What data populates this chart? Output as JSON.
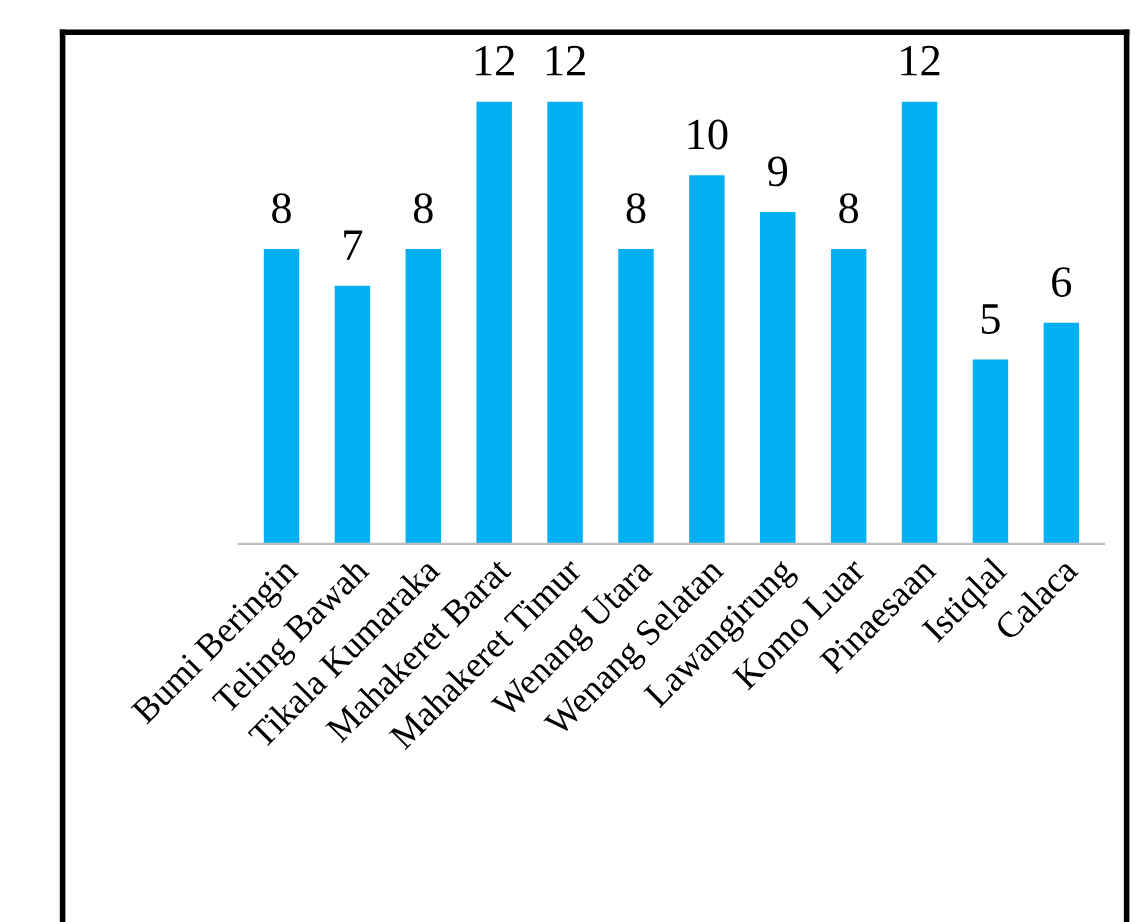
{
  "chart_data": {
    "type": "bar",
    "categories": [
      "Bumi Beringin",
      "Teling Bawah",
      "Tikala Kumaraka",
      "Mahakeret Barat",
      "Mahakeret Timur",
      "Wenang Utara",
      "Wenang Selatan",
      "Lawangirung",
      "Komo Luar",
      "Pinaesaan",
      "Istiqlal",
      "Calaca"
    ],
    "values": [
      8,
      7,
      8,
      12,
      12,
      8,
      10,
      9,
      8,
      12,
      5,
      6
    ],
    "color": "#00b0f0",
    "data_labels": true,
    "grid": false,
    "legend": false
  }
}
